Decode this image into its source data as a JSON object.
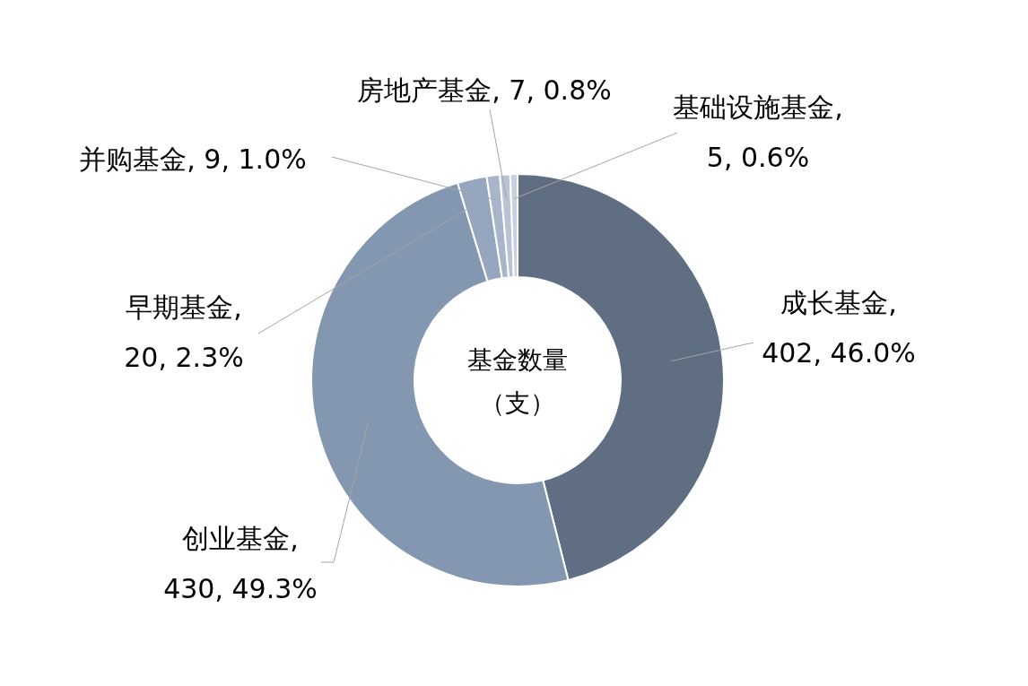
{
  "chart_data": {
    "type": "donut",
    "title": "基金数量（支）",
    "categories": [
      "成长基金",
      "创业基金",
      "早期基金",
      "并购基金",
      "房地产基金",
      "基础设施基金"
    ],
    "values": [
      402,
      430,
      20,
      9,
      7,
      5
    ],
    "value_labels": [
      ", 402, 46.0%",
      ", 430, 49.3%",
      ", 20, 2.3%",
      ", 9, 1.0%",
      ", 7, 0.8%",
      ", 5, 0.6%"
    ],
    "colors": [
      "#5f6e83",
      "#8497b0",
      "#97a6bf",
      "#a8b5ca",
      "#b9c3d6",
      "#c9d1e0"
    ],
    "legend": false
  }
}
